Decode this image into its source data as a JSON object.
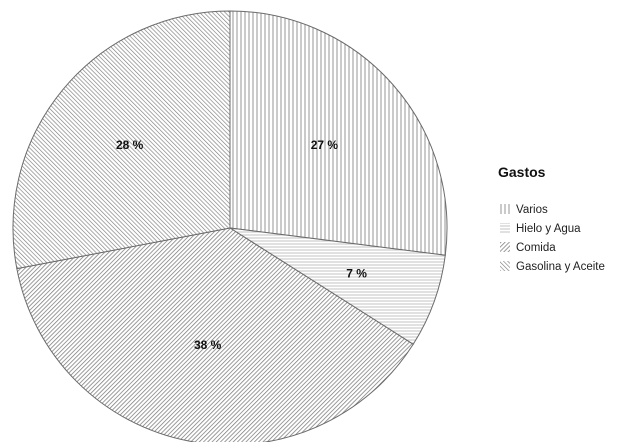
{
  "chart_data": {
    "type": "pie",
    "title": "",
    "legend_title": "Gastos",
    "legend_position": "right",
    "categories": [
      "Varios",
      "Hielo y Agua",
      "Comida",
      "Gasolina y Aceite"
    ],
    "values": [
      27,
      7,
      38,
      28
    ],
    "value_labels": [
      "27 %",
      "7 %",
      "38 %",
      "28 %"
    ],
    "fill_patterns": [
      "vertical-lines",
      "horizontal-lines",
      "diagonal-lines-dense",
      "diagonal-lines"
    ],
    "colors": {
      "stroke": "#6b6b6b",
      "pattern_ink": "#8a8a8a",
      "slice_background": "#ffffff"
    }
  }
}
